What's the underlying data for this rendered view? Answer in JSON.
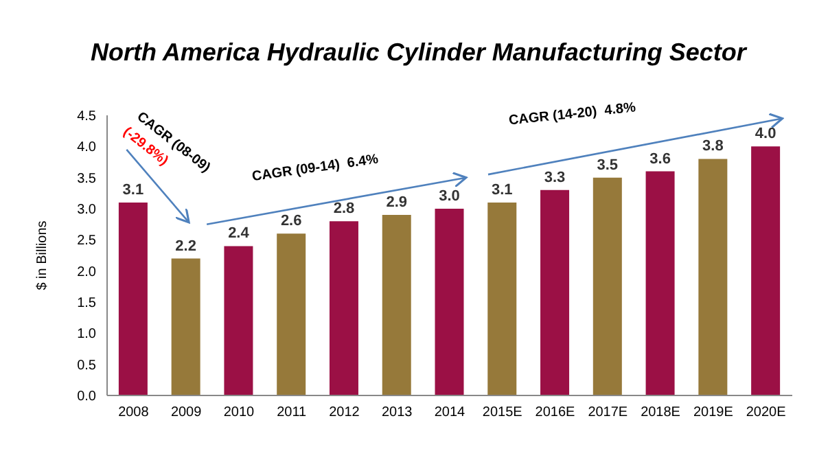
{
  "chart_data": {
    "type": "bar",
    "title": "North America Hydraulic Cylinder Manufacturing Sector",
    "ylabel": "$ in Billions",
    "categories": [
      "2008",
      "2009",
      "2010",
      "2011",
      "2012",
      "2013",
      "2014",
      "2015E",
      "2016E",
      "2017E",
      "2018E",
      "2019E",
      "2020E"
    ],
    "values": [
      3.1,
      2.2,
      2.4,
      2.6,
      2.8,
      2.9,
      3.0,
      3.1,
      3.3,
      3.5,
      3.6,
      3.8,
      4.0
    ],
    "colors": [
      "#9b1045",
      "#96793a",
      "#9b1045",
      "#96793a",
      "#9b1045",
      "#96793a",
      "#9b1045",
      "#96793a",
      "#9b1045",
      "#96793a",
      "#9b1045",
      "#96793a",
      "#9b1045"
    ],
    "ylim": [
      0,
      4.5
    ],
    "yticks": [
      {
        "value": 0,
        "label": "0.0"
      },
      {
        "value": 0.5,
        "label": "0.5"
      },
      {
        "value": 1,
        "label": "1.0"
      },
      {
        "value": 1.5,
        "label": "1.5"
      },
      {
        "value": 2,
        "label": "2.0"
      },
      {
        "value": 2.5,
        "label": "2.5"
      },
      {
        "value": 3,
        "label": "3.0"
      },
      {
        "value": 3.5,
        "label": "3.5"
      },
      {
        "value": 4,
        "label": "4.0"
      },
      {
        "value": 4.5,
        "label": "4.5"
      }
    ],
    "value_labels": [
      "3.1",
      "2.2",
      "2.4",
      "2.6",
      "2.8",
      "2.9",
      "3.0",
      "3.1",
      "3.3",
      "3.5",
      "3.6",
      "3.8",
      "4.0"
    ],
    "grid": false,
    "legend": false,
    "annotations": [
      "CAGR (08-09)",
      "(-29.8%)",
      "CAGR (09-14)  6.4%",
      "CAGR (14-20)  4.8%"
    ]
  }
}
